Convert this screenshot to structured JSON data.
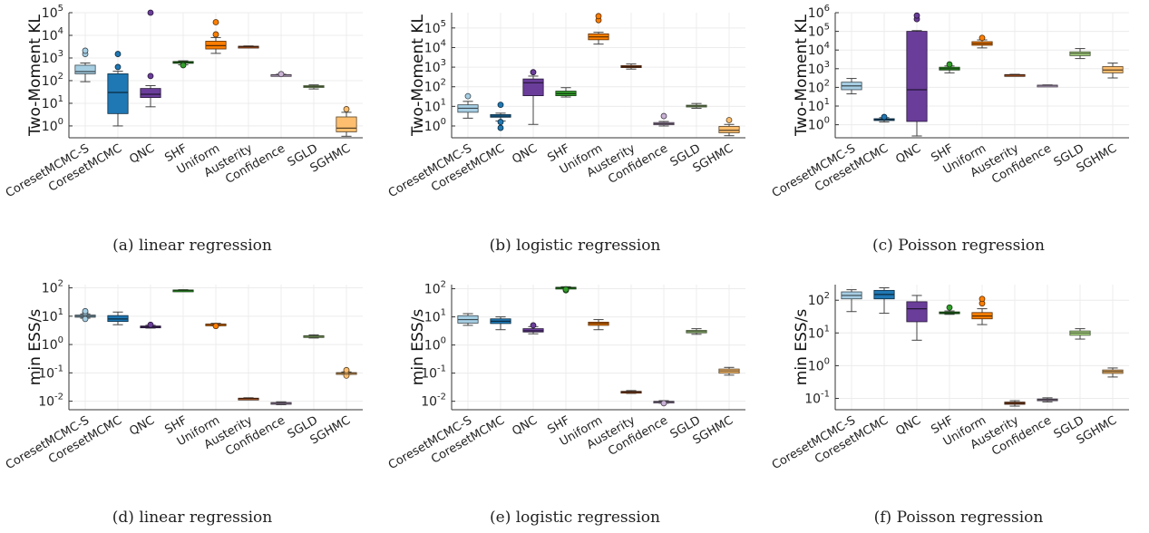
{
  "chart_data": [
    {
      "type": "box",
      "ylabel": "Two-Moment KL",
      "yscale": "log",
      "ylim": [
        0.3,
        100000
      ],
      "ytick_labels": [
        "10^0",
        "10^1",
        "10^2",
        "10^3",
        "10^4",
        "10^5"
      ],
      "grid": true,
      "categories": [
        "CoresetMCMC-S",
        "CoresetMCMC",
        "QNC",
        "SHF",
        "Uniform",
        "Austerity",
        "Confidence",
        "SGLD",
        "SGHMC"
      ],
      "boxes": [
        {
          "min": 90,
          "q1": 200,
          "median": 250,
          "q3": 480,
          "max": 600,
          "outliers": [
            1500,
            2100
          ]
        },
        {
          "min": 1.0,
          "q1": 3.5,
          "median": 30,
          "q3": 200,
          "max": 260,
          "outliers": [
            400,
            1500
          ]
        },
        {
          "min": 7,
          "q1": 18,
          "median": 25,
          "q3": 45,
          "max": 60,
          "outliers": [
            160,
            100000
          ]
        },
        {
          "min": 500,
          "q1": 590,
          "median": 640,
          "q3": 700,
          "max": 750,
          "outliers": [
            480
          ]
        },
        {
          "min": 1600,
          "q1": 2500,
          "median": 3500,
          "q3": 5500,
          "max": 8000,
          "outliers": [
            11000,
            38000
          ]
        },
        {
          "min": 3000,
          "q1": 3100,
          "median": 3200,
          "q3": 3300,
          "max": 3400,
          "outliers": []
        },
        {
          "min": 165,
          "q1": 172,
          "median": 178,
          "q3": 185,
          "max": 192,
          "outliers": [
            195
          ]
        },
        {
          "min": 43,
          "q1": 50,
          "median": 55,
          "q3": 60,
          "max": 65,
          "outliers": []
        },
        {
          "min": 0.35,
          "q1": 0.55,
          "median": 0.8,
          "q3": 2.5,
          "max": 4,
          "outliers": [
            5.5
          ]
        }
      ],
      "colors": [
        "#a6cee3",
        "#1f78b4",
        "#6a3d9a",
        "#33a02c",
        "#ff7f00",
        "#b15928",
        "#cab2d6",
        "#b2df8a",
        "#fdbf6f"
      ],
      "caption": "(a) linear regression"
    },
    {
      "type": "box",
      "ylabel": "Two-Moment KL",
      "yscale": "log",
      "ylim": [
        0.25,
        600000
      ],
      "ytick_labels": [
        "10^0",
        "10^1",
        "10^2",
        "10^3",
        "10^4",
        "10^5"
      ],
      "grid": true,
      "categories": [
        "CoresetMCMC-S",
        "CoresetMCMC",
        "QNC",
        "SHF",
        "Uniform",
        "Austerity",
        "Confidence",
        "SGLD",
        "SGHMC"
      ],
      "boxes": [
        {
          "min": 2.5,
          "q1": 5,
          "median": 8,
          "q3": 12,
          "max": 18,
          "outliers": [
            33
          ]
        },
        {
          "min": 1.8,
          "q1": 2.8,
          "median": 3.2,
          "q3": 3.8,
          "max": 4.5,
          "outliers": [
            0.8,
            1.6,
            12
          ]
        },
        {
          "min": 1.2,
          "q1": 35,
          "median": 160,
          "q3": 250,
          "max": 350,
          "outliers": [
            550
          ]
        },
        {
          "min": 30,
          "q1": 35,
          "median": 45,
          "q3": 60,
          "max": 90,
          "outliers": []
        },
        {
          "min": 15000,
          "q1": 25000,
          "median": 35000,
          "q3": 50000,
          "max": 60000,
          "outliers": [
            250000,
            400000
          ]
        },
        {
          "min": 800,
          "q1": 950,
          "median": 1050,
          "q3": 1200,
          "max": 1450,
          "outliers": []
        },
        {
          "min": 1.0,
          "q1": 1.15,
          "median": 1.3,
          "q3": 1.5,
          "max": 1.7,
          "outliers": [
            3.2
          ]
        },
        {
          "min": 8,
          "q1": 9.5,
          "median": 10.5,
          "q3": 11.5,
          "max": 14,
          "outliers": []
        },
        {
          "min": 0.32,
          "q1": 0.45,
          "median": 0.6,
          "q3": 0.95,
          "max": 1.2,
          "outliers": [
            2
          ]
        }
      ],
      "colors": [
        "#a6cee3",
        "#1f78b4",
        "#6a3d9a",
        "#33a02c",
        "#ff7f00",
        "#b15928",
        "#cab2d6",
        "#b2df8a",
        "#fdbf6f"
      ],
      "caption": "(b) logistic regression"
    },
    {
      "type": "box",
      "ylabel": "Two-Moment KL",
      "yscale": "log",
      "ylim": [
        0.2,
        1000000
      ],
      "ytick_labels": [
        "10^0",
        "10^1",
        "10^2",
        "10^3",
        "10^4",
        "10^5",
        "10^6"
      ],
      "grid": true,
      "categories": [
        "CoresetMCMC-S",
        "CoresetMCMC",
        "QNC",
        "SHF",
        "Uniform",
        "Austerity",
        "Confidence",
        "SGLD",
        "SGHMC"
      ],
      "boxes": [
        {
          "min": 45,
          "q1": 75,
          "median": 120,
          "q3": 190,
          "max": 300,
          "outliers": []
        },
        {
          "min": 1.4,
          "q1": 1.7,
          "median": 1.9,
          "q3": 2.1,
          "max": 2.4,
          "outliers": [
            2.6
          ]
        },
        {
          "min": 0.25,
          "q1": 1.5,
          "median": 75,
          "q3": 100000,
          "max": 110000,
          "outliers": [
            450000,
            700000
          ]
        },
        {
          "min": 600,
          "q1": 850,
          "median": 1000,
          "q3": 1200,
          "max": 1400,
          "outliers": [
            1700
          ]
        },
        {
          "min": 13000,
          "q1": 18000,
          "median": 22000,
          "q3": 28000,
          "max": 35000,
          "outliers": [
            45000
          ]
        },
        {
          "min": 430,
          "q1": 455,
          "median": 470,
          "q3": 485,
          "max": 500,
          "outliers": []
        },
        {
          "min": 118,
          "q1": 124,
          "median": 128,
          "q3": 132,
          "max": 136,
          "outliers": []
        },
        {
          "min": 3500,
          "q1": 5000,
          "median": 6500,
          "q3": 8000,
          "max": 12000,
          "outliers": []
        },
        {
          "min": 320,
          "q1": 600,
          "median": 850,
          "q3": 1300,
          "max": 2000,
          "outliers": []
        }
      ],
      "colors": [
        "#a6cee3",
        "#1f78b4",
        "#6a3d9a",
        "#33a02c",
        "#ff7f00",
        "#b15928",
        "#cab2d6",
        "#b2df8a",
        "#fdbf6f"
      ],
      "caption": "(c) Poisson regression"
    },
    {
      "type": "box",
      "ylabel": "min ESS/s",
      "yscale": "log",
      "ylim": [
        0.005,
        130
      ],
      "ytick_labels": [
        "10^-2",
        "10^-1",
        "10^0",
        "10^1",
        "10^2"
      ],
      "grid": true,
      "categories": [
        "CoresetMCMC-S",
        "CoresetMCMC",
        "QNC",
        "SHF",
        "Uniform",
        "Austerity",
        "Confidence",
        "SGLD",
        "SGHMC"
      ],
      "boxes": [
        {
          "min": 8.5,
          "q1": 9.2,
          "median": 10,
          "q3": 11,
          "max": 12,
          "outliers": [
            8,
            13,
            15
          ]
        },
        {
          "min": 5,
          "q1": 6.5,
          "median": 8,
          "q3": 10.5,
          "max": 14,
          "outliers": []
        },
        {
          "min": 3.8,
          "q1": 4.0,
          "median": 4.2,
          "q3": 4.5,
          "max": 4.8,
          "outliers": [
            5
          ]
        },
        {
          "min": 78,
          "q1": 80,
          "median": 82,
          "q3": 84,
          "max": 86,
          "outliers": []
        },
        {
          "min": 4.6,
          "q1": 4.9,
          "median": 5.1,
          "q3": 5.3,
          "max": 5.6,
          "outliers": [
            4.5
          ]
        },
        {
          "min": 0.0118,
          "q1": 0.0122,
          "median": 0.0125,
          "q3": 0.0128,
          "max": 0.0132,
          "outliers": []
        },
        {
          "min": 0.0075,
          "q1": 0.008,
          "median": 0.0085,
          "q3": 0.009,
          "max": 0.0095,
          "outliers": []
        },
        {
          "min": 1.7,
          "q1": 1.85,
          "median": 1.95,
          "q3": 2.05,
          "max": 2.2,
          "outliers": []
        },
        {
          "min": 0.088,
          "q1": 0.094,
          "median": 0.098,
          "q3": 0.102,
          "max": 0.108,
          "outliers": [
            0.08,
            0.11,
            0.125
          ]
        }
      ],
      "colors": [
        "#a6cee3",
        "#1f78b4",
        "#6a3d9a",
        "#33a02c",
        "#ff7f00",
        "#b15928",
        "#cab2d6",
        "#b2df8a",
        "#fdbf6f"
      ],
      "caption": "(d) linear regression"
    },
    {
      "type": "box",
      "ylabel": "min ESS/s",
      "yscale": "log",
      "ylim": [
        0.005,
        140
      ],
      "ytick_labels": [
        "10^-2",
        "10^-1",
        "10^0",
        "10^1",
        "10^2"
      ],
      "grid": true,
      "categories": [
        "CoresetMCMC-S",
        "CoresetMCMC",
        "QNC",
        "SHF",
        "Uniform",
        "Austerity",
        "Confidence",
        "SGLD",
        "SGHMC"
      ],
      "boxes": [
        {
          "min": 5,
          "q1": 6,
          "median": 8,
          "q3": 11,
          "max": 13,
          "outliers": []
        },
        {
          "min": 3.5,
          "q1": 5.8,
          "median": 7,
          "q3": 8.5,
          "max": 10,
          "outliers": []
        },
        {
          "min": 2.5,
          "q1": 2.9,
          "median": 3.2,
          "q3": 3.8,
          "max": 4.5,
          "outliers": [
            5
          ]
        },
        {
          "min": 100,
          "q1": 104,
          "median": 108,
          "q3": 113,
          "max": 118,
          "outliers": [
            88,
            95
          ]
        },
        {
          "min": 3.5,
          "q1": 5,
          "median": 5.8,
          "q3": 6.5,
          "max": 8,
          "outliers": []
        },
        {
          "min": 0.019,
          "q1": 0.0205,
          "median": 0.0215,
          "q3": 0.0225,
          "max": 0.024,
          "outliers": []
        },
        {
          "min": 0.0085,
          "q1": 0.009,
          "median": 0.0095,
          "q3": 0.01,
          "max": 0.0105,
          "outliers": [
            0.0085
          ]
        },
        {
          "min": 2.4,
          "q1": 2.7,
          "median": 3.0,
          "q3": 3.3,
          "max": 3.8,
          "outliers": []
        },
        {
          "min": 0.085,
          "q1": 0.1,
          "median": 0.12,
          "q3": 0.14,
          "max": 0.16,
          "outliers": []
        }
      ],
      "colors": [
        "#a6cee3",
        "#1f78b4",
        "#6a3d9a",
        "#33a02c",
        "#ff7f00",
        "#b15928",
        "#cab2d6",
        "#b2df8a",
        "#fdbf6f"
      ],
      "caption": "(e) logistic regression"
    },
    {
      "type": "box",
      "ylabel": "min ESS/s",
      "yscale": "log",
      "ylim": [
        0.045,
        300
      ],
      "ytick_labels": [
        "10^-1",
        "10^0",
        "10^1",
        "10^2"
      ],
      "grid": true,
      "categories": [
        "CoresetMCMC-S",
        "CoresetMCMC",
        "QNC",
        "SHF",
        "Uniform",
        "Austerity",
        "Confidence",
        "SGLD",
        "SGHMC"
      ],
      "boxes": [
        {
          "min": 45,
          "q1": 110,
          "median": 140,
          "q3": 180,
          "max": 210,
          "outliers": []
        },
        {
          "min": 40,
          "q1": 110,
          "median": 150,
          "q3": 200,
          "max": 240,
          "outliers": []
        },
        {
          "min": 6,
          "q1": 22,
          "median": 55,
          "q3": 90,
          "max": 140,
          "outliers": []
        },
        {
          "min": 37,
          "q1": 39,
          "median": 41,
          "q3": 44,
          "max": 47,
          "outliers": [
            60
          ]
        },
        {
          "min": 18,
          "q1": 27,
          "median": 33,
          "q3": 42,
          "max": 55,
          "outliers": [
            80,
            110
          ]
        },
        {
          "min": 0.058,
          "q1": 0.066,
          "median": 0.071,
          "q3": 0.077,
          "max": 0.085,
          "outliers": []
        },
        {
          "min": 0.078,
          "q1": 0.085,
          "median": 0.09,
          "q3": 0.096,
          "max": 0.104,
          "outliers": []
        },
        {
          "min": 6.5,
          "q1": 8.5,
          "median": 10,
          "q3": 11.5,
          "max": 13.5,
          "outliers": []
        },
        {
          "min": 0.45,
          "q1": 0.58,
          "median": 0.66,
          "q3": 0.74,
          "max": 0.85,
          "outliers": []
        }
      ],
      "colors": [
        "#a6cee3",
        "#1f78b4",
        "#6a3d9a",
        "#33a02c",
        "#ff7f00",
        "#b15928",
        "#cab2d6",
        "#b2df8a",
        "#fdbf6f"
      ],
      "caption": "(f) Poisson regression"
    }
  ]
}
